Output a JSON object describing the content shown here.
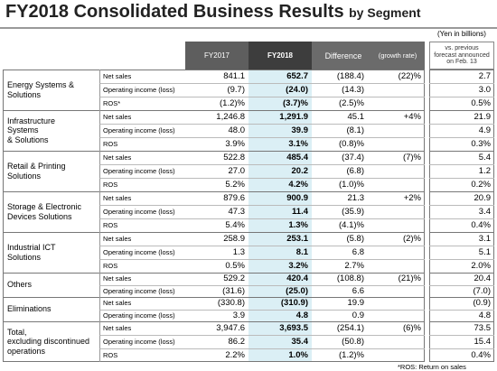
{
  "header": {
    "title": "FY2018 Consolidated Business Results",
    "subtitle": "by Segment",
    "unit": "(Yen in billions)"
  },
  "table": {
    "columns": [
      "FY2017",
      "FY2018",
      "Difference",
      "(growth rate)",
      "vs. previous\nforecast announced\non Feb. 13"
    ],
    "groups": [
      {
        "segment": "Energy Systems &\nSolutions",
        "rows": [
          [
            "Net sales",
            "841.1",
            "652.7",
            "(188.4)",
            "(22)%",
            "2.7"
          ],
          [
            "Operating income (loss)",
            "(9.7)",
            "(24.0)",
            "(14.3)",
            null,
            "3.0"
          ],
          [
            "ROS*",
            "(1.2)%",
            "(3.7)%",
            "(2.5)%",
            null,
            "0.5%"
          ]
        ]
      },
      {
        "segment": "Infrastructure\nSystems\n& Solutions",
        "rows": [
          [
            "Net sales",
            "1,246.8",
            "1,291.9",
            "45.1",
            "+4%",
            "21.9"
          ],
          [
            "Operating income (loss)",
            "48.0",
            "39.9",
            "(8.1)",
            null,
            "4.9"
          ],
          [
            "ROS",
            "3.9%",
            "3.1%",
            "(0.8)%",
            null,
            "0.3%"
          ]
        ]
      },
      {
        "segment": "Retail & Printing\nSolutions",
        "rows": [
          [
            "Net sales",
            "522.8",
            "485.4",
            "(37.4)",
            "(7)%",
            "5.4"
          ],
          [
            "Operating income (loss)",
            "27.0",
            "20.2",
            "(6.8)",
            null,
            "1.2"
          ],
          [
            "ROS",
            "5.2%",
            "4.2%",
            "(1.0)%",
            null,
            "0.2%"
          ]
        ]
      },
      {
        "segment": "Storage & Electronic\nDevices Solutions",
        "rows": [
          [
            "Net sales",
            "879.6",
            "900.9",
            "21.3",
            "+2%",
            "20.9"
          ],
          [
            "Operating income (loss)",
            "47.3",
            "11.4",
            "(35.9)",
            null,
            "3.4"
          ],
          [
            "ROS",
            "5.4%",
            "1.3%",
            "(4.1)%",
            null,
            "0.4%"
          ]
        ]
      },
      {
        "segment": "Industrial ICT\nSolutions",
        "rows": [
          [
            "Net sales",
            "258.9",
            "253.1",
            "(5.8)",
            "(2)%",
            "3.1"
          ],
          [
            "Operating income (loss)",
            "1.3",
            "8.1",
            "6.8",
            null,
            "5.1"
          ],
          [
            "ROS",
            "0.5%",
            "3.2%",
            "2.7%",
            null,
            "2.0%"
          ]
        ]
      },
      {
        "segment": "Others",
        "rows": [
          [
            "Net sales",
            "529.2",
            "420.4",
            "(108.8)",
            "(21)%",
            "20.4"
          ],
          [
            "Operating income (loss)",
            "(31.6)",
            "(25.0)",
            "6.6",
            null,
            "(7.0)"
          ]
        ]
      },
      {
        "segment": "Eliminations",
        "rows": [
          [
            "Net sales",
            "(330.8)",
            "(310.9)",
            "19.9",
            null,
            "(0.9)"
          ],
          [
            "Operating income (loss)",
            "3.9",
            "4.8",
            "0.9",
            null,
            "4.8"
          ]
        ]
      },
      {
        "segment": "Total,\nexcluding discontinued\noperations",
        "rows": [
          [
            "Net sales",
            "3,947.6",
            "3,693.5",
            "(254.1)",
            "(6)%",
            "73.5"
          ],
          [
            "Operating income (loss)",
            "86.2",
            "35.4",
            "(50.8)",
            null,
            "15.4"
          ],
          [
            "ROS",
            "2.2%",
            "1.0%",
            "(1.2)%",
            null,
            "0.4%"
          ]
        ]
      }
    ]
  },
  "footnote": "*ROS: Return on sales"
}
